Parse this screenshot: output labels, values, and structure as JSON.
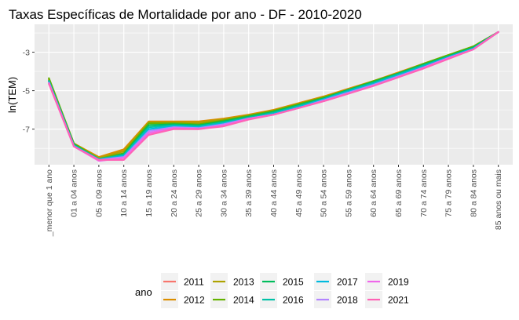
{
  "chart_data": {
    "type": "line",
    "title": "Taxas Específicas de Mortalidade por ano - DF - 2010-2020",
    "xlabel": "",
    "ylabel": "ln(TEM)",
    "ylim": [
      -8.85,
      -1.55
    ],
    "y_ticks": [
      -3,
      -5,
      -7
    ],
    "grid": true,
    "legend_title": "ano",
    "legend_position": "bottom",
    "categories": [
      "_menor que 1 ano",
      "01 a 04 anos",
      "05 a 09 anos",
      "10 a 14 anos",
      "15 a 19 anos",
      "20 a 24 anos",
      "25 a 29 anos",
      "30 a 34 anos",
      "35 a 39 anos",
      "40 a 44 anos",
      "45 a 49 anos",
      "50 a 54 anos",
      "55 a 59 anos",
      "60 a 64 anos",
      "65 a 69 anos",
      "70 a 74 anos",
      "75 a 79 anos",
      "80 a 84 anos",
      "85 anos ou mais"
    ],
    "series": [
      {
        "name": "2011",
        "color": "#F8766D",
        "values": [
          -4.45,
          -7.75,
          -8.5,
          -8.15,
          -6.65,
          -6.65,
          -6.7,
          -6.5,
          -6.3,
          -6.05,
          -5.7,
          -5.35,
          -4.95,
          -4.55,
          -4.15,
          -3.7,
          -3.2,
          -2.75,
          -1.95
        ]
      },
      {
        "name": "2012",
        "color": "#DB8E00",
        "values": [
          -4.4,
          -7.75,
          -8.45,
          -8.05,
          -6.6,
          -6.6,
          -6.6,
          -6.45,
          -6.25,
          -6.0,
          -5.65,
          -5.3,
          -4.9,
          -4.5,
          -4.05,
          -3.6,
          -3.15,
          -2.7,
          -1.95
        ]
      },
      {
        "name": "2013",
        "color": "#AEA200",
        "values": [
          -4.45,
          -7.8,
          -8.5,
          -8.15,
          -6.65,
          -6.65,
          -6.65,
          -6.5,
          -6.3,
          -6.05,
          -5.7,
          -5.35,
          -4.95,
          -4.55,
          -4.1,
          -3.65,
          -3.2,
          -2.75,
          -1.95
        ]
      },
      {
        "name": "2014",
        "color": "#64B200",
        "values": [
          -4.35,
          -7.75,
          -8.55,
          -8.25,
          -6.7,
          -6.7,
          -6.75,
          -6.55,
          -6.3,
          -6.05,
          -5.7,
          -5.35,
          -4.95,
          -4.5,
          -4.1,
          -3.6,
          -3.15,
          -2.7,
          -1.95
        ]
      },
      {
        "name": "2015",
        "color": "#00BD5C",
        "values": [
          -4.5,
          -7.8,
          -8.6,
          -8.3,
          -6.8,
          -6.75,
          -6.8,
          -6.6,
          -6.35,
          -6.1,
          -5.75,
          -5.4,
          -4.95,
          -4.55,
          -4.1,
          -3.65,
          -3.2,
          -2.75,
          -1.95
        ]
      },
      {
        "name": "2016",
        "color": "#00C1A7",
        "values": [
          -4.5,
          -7.85,
          -8.55,
          -8.35,
          -6.9,
          -6.8,
          -6.85,
          -6.65,
          -6.4,
          -6.15,
          -5.8,
          -5.45,
          -5.0,
          -4.6,
          -4.15,
          -3.7,
          -3.25,
          -2.8,
          -1.95
        ]
      },
      {
        "name": "2017",
        "color": "#00BADE",
        "values": [
          -4.55,
          -7.85,
          -8.6,
          -8.4,
          -7.0,
          -6.85,
          -6.9,
          -6.7,
          -6.45,
          -6.2,
          -5.85,
          -5.45,
          -5.05,
          -4.65,
          -4.2,
          -3.75,
          -3.25,
          -2.8,
          -1.95
        ]
      },
      {
        "name": "2018",
        "color": "#B385FF",
        "values": [
          -4.6,
          -7.9,
          -8.6,
          -8.45,
          -7.1,
          -6.9,
          -6.95,
          -6.75,
          -6.45,
          -6.25,
          -5.9,
          -5.5,
          -5.1,
          -4.7,
          -4.25,
          -3.8,
          -3.3,
          -2.85,
          -1.95
        ]
      },
      {
        "name": "2019",
        "color": "#EF67EB",
        "values": [
          -4.6,
          -7.9,
          -8.65,
          -8.5,
          -7.2,
          -6.95,
          -7.0,
          -6.8,
          -6.45,
          -6.25,
          -5.9,
          -5.55,
          -5.15,
          -4.75,
          -4.3,
          -3.8,
          -3.3,
          -2.85,
          -1.95
        ]
      },
      {
        "name": "2021",
        "color": "#FF63B6",
        "values": [
          -4.65,
          -7.9,
          -8.6,
          -8.6,
          -7.3,
          -7.0,
          -7.0,
          -6.85,
          -6.5,
          -6.25,
          -5.9,
          -5.55,
          -5.15,
          -4.75,
          -4.3,
          -3.85,
          -3.35,
          -2.85,
          -1.95
        ]
      }
    ]
  }
}
